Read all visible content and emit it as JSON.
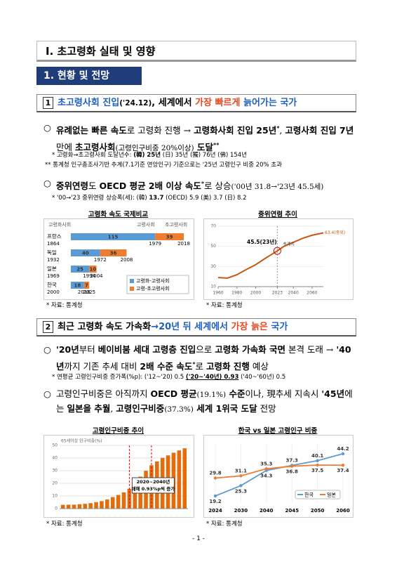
{
  "header": {
    "title": "Ⅰ. 초고령화 실태 및 영향"
  },
  "section": {
    "title": "1. 현황 및 전망"
  },
  "sub1": {
    "number": "1",
    "runs": [
      "초고령사회 진입",
      "('24.12)",
      ", 세계에서 ",
      "가장 빠르게",
      " 늙어가는 국가"
    ]
  },
  "sub1_items": {
    "bullet1": {
      "marker": "○",
      "runs": [
        "유례없는 빠른 속도",
        "로 고령화 진행 → ",
        "고령화사회 진입 25년",
        "*",
        ", ",
        "고령사회 진입 7년",
        " 만에 ",
        "초고령사회",
        "(고령인구비중 20%이상)",
        " 도달",
        "**"
      ]
    },
    "note1": [
      "* 고령화→초고령사회 도달년수: ",
      "(韓) 25년",
      " (日) 35년 (獨) 76년 (佛) 154년"
    ],
    "note2": "** 통계청 인구총조사기반 추계(7.1기준 연앙인구) 기준으로는 '25년 고령인구 비중 20% 초과",
    "bullet2": {
      "marker": "○",
      "runs": [
        "중위연령",
        "도 ",
        "OECD 평균 2배 이상 속도",
        "*",
        "로 상승",
        "('00년 31.8→'23년 45.5세)"
      ]
    },
    "note3": [
      "* '00→'23 중위연령 상승폭(세): (韓) ",
      "13.7",
      " (OECD) 5.9 (美) 3.7 (日) 8.2"
    ]
  },
  "sub2": {
    "number": "2",
    "runs": [
      "최근 고령화 속도 가속화",
      "→20년 뒤 세계에서 ",
      "가장 늙은",
      " 국가"
    ]
  },
  "sub2_items": {
    "bullet3": {
      "marker": "○",
      "runs": [
        "'20년",
        "부터 ",
        "베이비붐 세대 고령층 진입",
        "으로 ",
        "고령화 가속화 국면",
        " 본격 도래 → ",
        "'40년",
        "까지 기존 추세 대비 ",
        "2배 수준 속도",
        "*",
        "로 ",
        "고령화 진행",
        " 예상"
      ]
    },
    "note4": [
      "* 연평균 고령인구비중 증가폭(%p): ('12~'20) 0.5 ",
      "('20~'40년) 0.93",
      " ('40~'60년) 0.5"
    ],
    "bullet4": {
      "marker": "○",
      "runs": [
        "고령인구비중은 아직까지 ",
        "OECD 평균",
        "(19.1%)",
        " 수준",
        "이나, 現추세 지속시 ",
        "'45년",
        "에는 ",
        "일본을 추월",
        ", ",
        "고령인구비중",
        "(37.3%)",
        " 세계 1위국 도달",
        " 전망"
      ]
    }
  },
  "chart_data": [
    {
      "type": "bar",
      "title": "고령화 속도 국제비교",
      "source": "* 자료: 통계청",
      "column_labels": [
        "고령화사회",
        "고령사회",
        "초고령사회"
      ],
      "categories": [
        "프랑스",
        "독일",
        "일본",
        "한국"
      ],
      "start_years": [
        1864,
        1932,
        1969,
        2000
      ],
      "aged_years": [
        1979,
        1972,
        1994,
        2018
      ],
      "superaged_years": [
        2018,
        2008,
        2004,
        2025
      ],
      "series": [
        {
          "name": "고령화-고령사회",
          "color": "#5b9bd5",
          "values": [
            115,
            40,
            25,
            18
          ]
        },
        {
          "name": "고령-초고령사회",
          "color": "#ed7d31",
          "values": [
            39,
            36,
            10,
            7
          ]
        }
      ]
    },
    {
      "type": "line",
      "title": "중위연령 추이",
      "source": "* 자료: 통계청",
      "color": "#c65911",
      "x": [
        1960,
        1970,
        1980,
        1990,
        2000,
        2010,
        2023,
        2030,
        2040,
        2050,
        2060,
        2072
      ],
      "values": [
        19,
        18.5,
        21.8,
        27,
        31.8,
        38,
        45.5,
        50,
        54,
        58,
        61,
        63.4
      ],
      "xlim": [
        1960,
        2072
      ],
      "xticks": [
        1960,
        1980,
        2000,
        2023,
        2040,
        2060
      ],
      "ylim": [
        10,
        70
      ],
      "yticks": [
        10,
        30,
        50,
        70
      ],
      "annotations": [
        "45.5(23년)",
        "추계치",
        "63.4(중위)"
      ]
    },
    {
      "type": "bar",
      "title": "고령인구비중 추이",
      "source": "* 자료: 통계청",
      "color": "#e46c0a",
      "axis_label": "65세이상 인구비중(%)",
      "x": [
        1960,
        1965,
        1970,
        1975,
        1980,
        1985,
        1990,
        1995,
        2000,
        2005,
        2010,
        2015,
        2020,
        2025,
        2030,
        2035,
        2040,
        2045,
        2050,
        2055,
        2060,
        2065,
        2070
      ],
      "values": [
        3,
        3.1,
        3.1,
        3.5,
        3.8,
        4.3,
        5.1,
        5.9,
        7.2,
        9.1,
        10.8,
        12.8,
        15.7,
        20.3,
        25.3,
        29.9,
        34.3,
        37.3,
        40.1,
        42.1,
        44.2,
        46,
        47.7
      ],
      "xlim": [
        1957,
        2073
      ],
      "ylim": [
        0,
        50
      ],
      "yticks": [
        0,
        10,
        20,
        30,
        40,
        50
      ],
      "marked_years": [
        2020,
        2040
      ],
      "annotations": [
        "2020~2040년",
        "매해 0.93%p씩 증가"
      ]
    },
    {
      "type": "line",
      "title": "한국 vs 일본 고령인구 비중",
      "source": "* 자료: 통계청",
      "categories": [
        "2024",
        "2030",
        "2040",
        "2045",
        "2050",
        "2060"
      ],
      "ylim": [
        15,
        50
      ],
      "series": [
        {
          "name": "한국",
          "color": "#5b9bd5",
          "values": [
            19.2,
            25.3,
            34.3,
            37.3,
            40.1,
            44.2
          ]
        },
        {
          "name": "일본",
          "color": "#ed7d31",
          "values": [
            29.8,
            31.1,
            35.3,
            36.8,
            37.5,
            37.4
          ]
        }
      ]
    }
  ],
  "footer": {
    "page": "- 1 -"
  }
}
